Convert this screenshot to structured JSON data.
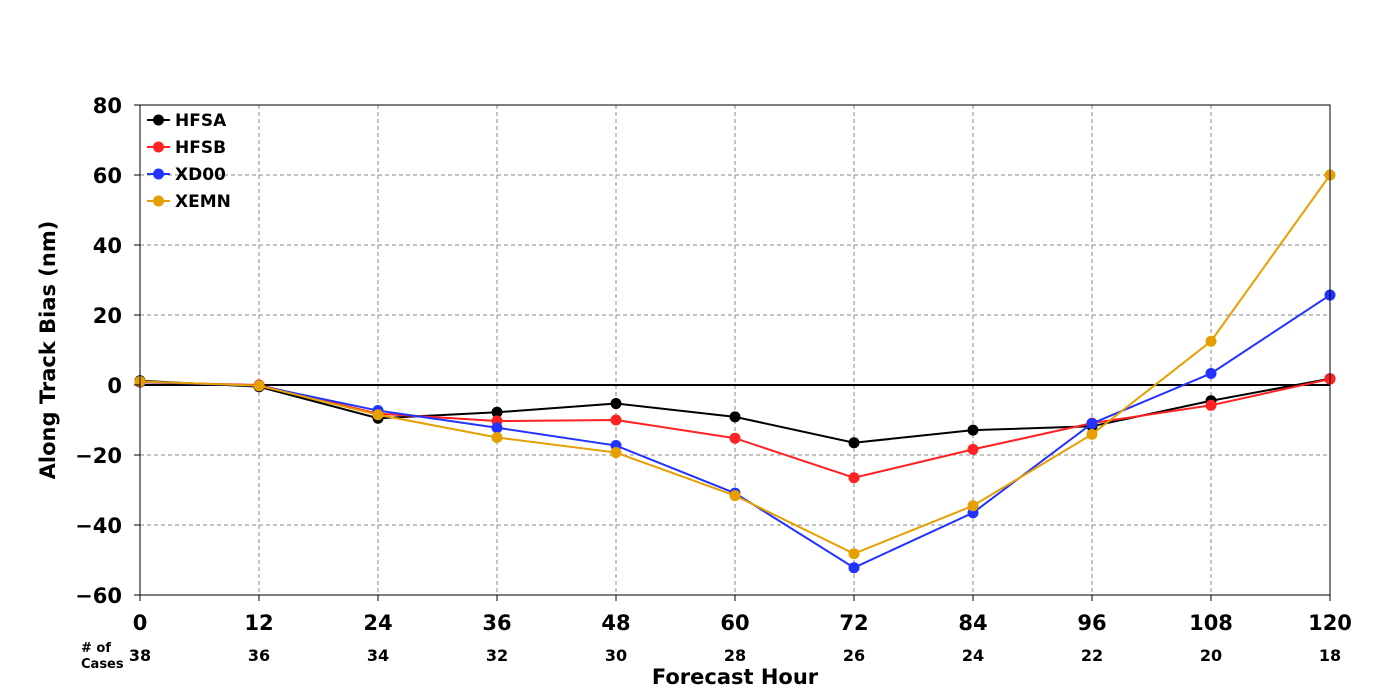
{
  "chart_data": {
    "type": "line",
    "xlabel": "Forecast Hour",
    "ylabel": "Along Track Bias (nm)",
    "x": [
      0,
      12,
      24,
      36,
      48,
      60,
      72,
      84,
      96,
      108,
      120
    ],
    "xlim": [
      0,
      120
    ],
    "ylim": [
      -60,
      80
    ],
    "x_ticks": [
      0,
      12,
      24,
      36,
      48,
      60,
      72,
      84,
      96,
      108,
      120
    ],
    "y_ticks": [
      -60,
      -40,
      -20,
      0,
      20,
      40,
      60,
      80
    ],
    "grid": true,
    "legend_position": "top-left",
    "cases_label": "# of\nCases",
    "cases": [
      38,
      36,
      34,
      32,
      30,
      28,
      26,
      24,
      22,
      20,
      18
    ],
    "series": [
      {
        "name": "HFSA",
        "color": "#000000",
        "values": [
          1.2,
          -0.5,
          -9.5,
          -7.8,
          -5.3,
          -9.1,
          -16.5,
          -12.9,
          -11.8,
          -4.5,
          1.8
        ]
      },
      {
        "name": "HFSB",
        "color": "#ff2222",
        "values": [
          0.8,
          0.0,
          -8.2,
          -10.3,
          -10.0,
          -15.2,
          -26.5,
          -18.4,
          -10.9,
          -5.8,
          1.7
        ]
      },
      {
        "name": "XD00",
        "color": "#2233ff",
        "values": [
          0.9,
          -0.2,
          -7.3,
          -12.2,
          -17.3,
          -30.9,
          -52.2,
          -36.5,
          -11.0,
          3.3,
          25.7
        ]
      },
      {
        "name": "XEMN",
        "color": "#e69f00",
        "values": [
          1.0,
          -0.2,
          -8.5,
          -15.0,
          -19.3,
          -31.6,
          -48.2,
          -34.5,
          -14.1,
          12.5,
          60.0
        ]
      }
    ]
  }
}
